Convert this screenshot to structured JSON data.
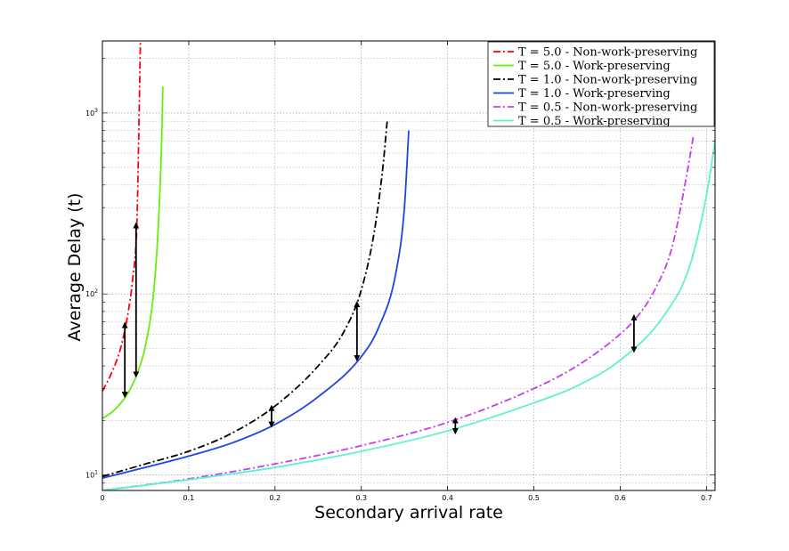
{
  "chart_data": {
    "type": "line",
    "title": "",
    "xlabel": "Secondary arrival rate",
    "ylabel": "Average Delay (t)",
    "xlim": [
      0,
      0.71
    ],
    "ylim": [
      8.2,
      2500
    ],
    "yscale": "log",
    "grid": true,
    "legend_position": "top-right",
    "xticks": [
      0,
      0.1,
      0.2,
      0.3,
      0.4,
      0.5,
      0.6,
      0.7
    ],
    "xtick_labels": [
      "0",
      "0.1",
      "0.2",
      "0.3",
      "0.4",
      "0.5",
      "0.6",
      "0.7"
    ],
    "yticks": [
      10,
      100,
      1000
    ],
    "ytick_labels": [
      {
        "base": "10",
        "exp": "1"
      },
      {
        "base": "10",
        "exp": "2"
      },
      {
        "base": "10",
        "exp": "3"
      }
    ],
    "series": [
      {
        "name": "T = 5.0 - Non-work-preserving",
        "color": "#ff0000",
        "style": "dashdot",
        "x": [
          0,
          0.01,
          0.02,
          0.025,
          0.03,
          0.035,
          0.04,
          0.042,
          0.044
        ],
        "y": [
          29,
          36,
          48,
          60,
          80,
          120,
          250,
          700,
          2500
        ]
      },
      {
        "name": "T = 5.0 - Work-preserving",
        "color": "#66ee11",
        "style": "solid",
        "x": [
          0,
          0.01,
          0.02,
          0.03,
          0.04,
          0.05,
          0.06,
          0.065,
          0.069,
          0.07
        ],
        "y": [
          20.5,
          22,
          24.5,
          28.5,
          36,
          52,
          110,
          250,
          800,
          1400
        ]
      },
      {
        "name": "T = 1.0 - Non-work-preserving",
        "color": "#000000",
        "style": "dashdot",
        "x": [
          0,
          0.05,
          0.1,
          0.15,
          0.2,
          0.25,
          0.28,
          0.3,
          0.315,
          0.325,
          0.33
        ],
        "y": [
          9.8,
          11.5,
          13.5,
          17,
          24,
          40,
          62,
          105,
          220,
          500,
          900
        ]
      },
      {
        "name": "T = 1.0 - Work-preserving",
        "color": "#1f45e0",
        "style": "solid",
        "x": [
          0,
          0.05,
          0.1,
          0.15,
          0.2,
          0.25,
          0.3,
          0.32,
          0.34,
          0.35,
          0.355
        ],
        "y": [
          9.6,
          11,
          12.7,
          15,
          19,
          27,
          45,
          65,
          130,
          300,
          800
        ]
      },
      {
        "name": "T = 0.5 - Non-work-preserving",
        "color": "#c43cf0",
        "style": "dashdot",
        "x": [
          0,
          0.1,
          0.2,
          0.3,
          0.4,
          0.5,
          0.55,
          0.6,
          0.62,
          0.64,
          0.66,
          0.675,
          0.685
        ],
        "y": [
          8.2,
          9.5,
          11.5,
          14.5,
          19.5,
          30,
          40,
          60,
          75,
          105,
          180,
          400,
          750
        ]
      },
      {
        "name": "T = 0.5 - Work-preserving",
        "color": "#5ef2d2",
        "style": "solid",
        "x": [
          0,
          0.1,
          0.2,
          0.3,
          0.4,
          0.5,
          0.55,
          0.6,
          0.65,
          0.68,
          0.7,
          0.71
        ],
        "y": [
          8.2,
          9.4,
          11,
          13.5,
          17.5,
          25,
          31,
          43,
          75,
          140,
          350,
          700
        ]
      }
    ],
    "annotations": [
      {
        "type": "double-arrow",
        "x": 0.026,
        "y": [
          27,
          69
        ]
      },
      {
        "type": "double-arrow",
        "x": 0.039,
        "y": [
          35,
          245
        ]
      },
      {
        "type": "double-arrow",
        "x": 0.196,
        "y": [
          18.5,
          24
        ]
      },
      {
        "type": "double-arrow",
        "x": 0.295,
        "y": [
          43,
          90
        ]
      },
      {
        "type": "double-arrow",
        "x": 0.409,
        "y": [
          17,
          20.5
        ]
      },
      {
        "type": "double-arrow",
        "x": 0.616,
        "y": [
          48,
          76
        ]
      }
    ]
  }
}
